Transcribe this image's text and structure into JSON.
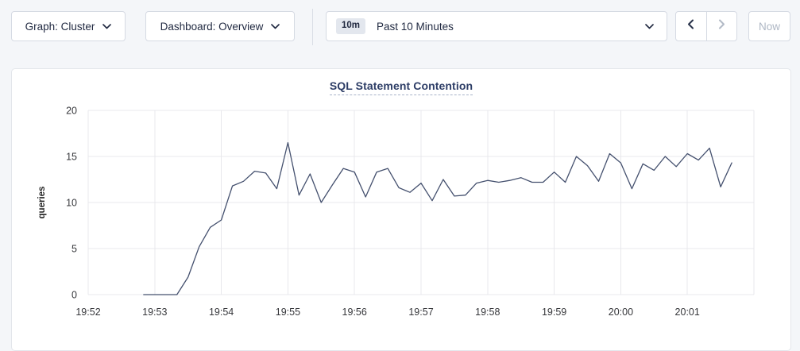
{
  "toolbar": {
    "graph_dropdown_label": "Graph: Cluster",
    "dashboard_dropdown_label": "Dashboard: Overview",
    "time_range_badge": "10m",
    "time_range_label": "Past 10 Minutes",
    "now_button_label": "Now"
  },
  "colors": {
    "accent_text": "#1f2840",
    "disabled": "#b2bac6",
    "line": "#44506e",
    "grid": "#e8e8ec",
    "tick_text": "#35363a",
    "title": "#2d3d66"
  },
  "chart_data": {
    "type": "line",
    "title": "SQL Statement Contention",
    "xlabel": "",
    "ylabel": "queries",
    "ylim": [
      0,
      20
    ],
    "y_ticks": [
      0,
      5,
      10,
      15,
      20
    ],
    "x_axis": {
      "start": "19:52",
      "end": "20:02",
      "tick_labels": [
        "19:52",
        "19:53",
        "19:54",
        "19:55",
        "19:56",
        "19:57",
        "19:58",
        "19:59",
        "20:00",
        "20:01"
      ]
    },
    "grid": true,
    "legend": "none",
    "series": [
      {
        "name": "queries",
        "color": "#44506e",
        "points": [
          [
            "19:52:50",
            0
          ],
          [
            "19:53:00",
            0
          ],
          [
            "19:53:10",
            0
          ],
          [
            "19:53:20",
            0
          ],
          [
            "19:53:30",
            1.9
          ],
          [
            "19:53:40",
            5.2
          ],
          [
            "19:53:50",
            7.3
          ],
          [
            "19:54:00",
            8.1
          ],
          [
            "19:54:10",
            11.8
          ],
          [
            "19:54:20",
            12.3
          ],
          [
            "19:54:30",
            13.4
          ],
          [
            "19:54:40",
            13.2
          ],
          [
            "19:54:50",
            11.5
          ],
          [
            "19:55:00",
            16.5
          ],
          [
            "19:55:10",
            10.8
          ],
          [
            "19:55:20",
            13.1
          ],
          [
            "19:55:30",
            10.0
          ],
          [
            "19:55:40",
            11.9
          ],
          [
            "19:55:50",
            13.7
          ],
          [
            "19:56:00",
            13.3
          ],
          [
            "19:56:10",
            10.6
          ],
          [
            "19:56:20",
            13.3
          ],
          [
            "19:56:30",
            13.7
          ],
          [
            "19:56:40",
            11.6
          ],
          [
            "19:56:50",
            11.1
          ],
          [
            "19:57:00",
            12.1
          ],
          [
            "19:57:10",
            10.2
          ],
          [
            "19:57:20",
            12.5
          ],
          [
            "19:57:30",
            10.7
          ],
          [
            "19:57:40",
            10.8
          ],
          [
            "19:57:50",
            12.1
          ],
          [
            "19:58:00",
            12.4
          ],
          [
            "19:58:10",
            12.2
          ],
          [
            "19:58:20",
            12.4
          ],
          [
            "19:58:30",
            12.7
          ],
          [
            "19:58:40",
            12.2
          ],
          [
            "19:58:50",
            12.2
          ],
          [
            "19:59:00",
            13.3
          ],
          [
            "19:59:10",
            12.2
          ],
          [
            "19:59:20",
            15.0
          ],
          [
            "19:59:30",
            14.0
          ],
          [
            "19:59:40",
            12.3
          ],
          [
            "19:59:50",
            15.3
          ],
          [
            "20:00:00",
            14.3
          ],
          [
            "20:00:10",
            11.5
          ],
          [
            "20:00:20",
            14.2
          ],
          [
            "20:00:30",
            13.5
          ],
          [
            "20:00:40",
            15.0
          ],
          [
            "20:00:50",
            13.9
          ],
          [
            "20:01:00",
            15.3
          ],
          [
            "20:01:10",
            14.6
          ],
          [
            "20:01:20",
            15.9
          ],
          [
            "20:01:30",
            11.7
          ],
          [
            "20:01:40",
            14.3
          ]
        ]
      }
    ]
  }
}
